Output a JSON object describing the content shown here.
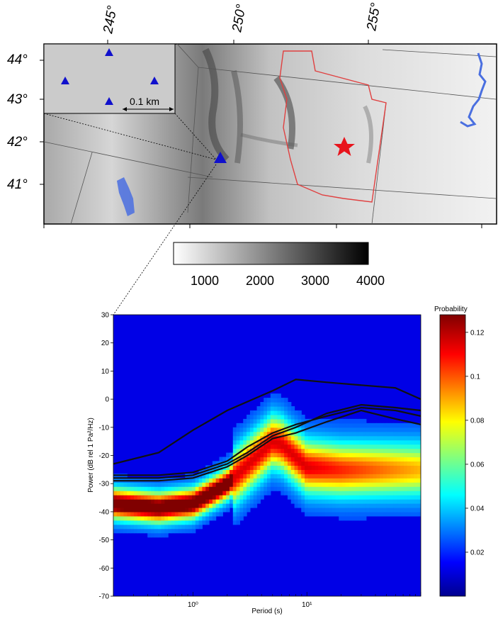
{
  "map": {
    "lon_labels": [
      "245°",
      "250°",
      "255°"
    ],
    "lat_labels": [
      "44°",
      "43°",
      "42°",
      "41°"
    ],
    "inset_scale_label": "0.1 km",
    "elevation_colorbar": {
      "ticks": [
        "1000",
        "2000",
        "3000",
        "4000"
      ],
      "range": [
        500,
        4000
      ]
    },
    "colors": {
      "station": "#1010cc",
      "star": "#e8141c",
      "outline": "#e04040",
      "water": "#4a6fe0"
    }
  },
  "chart_data": {
    "type": "heatmap",
    "title": "",
    "xlabel": "Period (s)",
    "ylabel": "Power (dB rel 1 Pa²/Hz)",
    "xscale": "log",
    "xlim": [
      0.2,
      100
    ],
    "ylim": [
      -70,
      30
    ],
    "x_tick_labels": [
      "10⁰",
      "10¹"
    ],
    "x_tick_values": [
      1,
      10
    ],
    "y_ticks": [
      30,
      20,
      10,
      0,
      -10,
      -20,
      -30,
      -40,
      -50,
      -60,
      -70
    ],
    "colorbar": {
      "label": "Probability",
      "ticks": [
        0.02,
        0.04,
        0.06,
        0.08,
        0.1,
        0.12
      ],
      "range": [
        0,
        0.128
      ]
    },
    "ridge": [
      {
        "period": 0.2,
        "power": -37
      },
      {
        "period": 0.5,
        "power": -38.5
      },
      {
        "period": 1,
        "power": -37
      },
      {
        "period": 2,
        "power": -30
      },
      {
        "period": 5,
        "power": -15
      },
      {
        "period": 6,
        "power": -16
      },
      {
        "period": 10,
        "power": -24
      },
      {
        "period": 20,
        "power": -25
      },
      {
        "period": 100,
        "power": -25
      }
    ],
    "series": [
      {
        "values": [
          [
            0.2,
            -23
          ],
          [
            0.5,
            -19
          ],
          [
            1,
            -11
          ],
          [
            2,
            -4
          ],
          [
            5,
            3
          ],
          [
            8,
            7
          ],
          [
            15,
            6
          ],
          [
            30,
            5
          ],
          [
            60,
            4
          ],
          [
            100,
            0
          ]
        ]
      },
      {
        "values": [
          [
            0.2,
            -27
          ],
          [
            0.5,
            -27
          ],
          [
            1,
            -26
          ],
          [
            2,
            -22
          ],
          [
            3,
            -17
          ],
          [
            5,
            -12
          ],
          [
            8,
            -9
          ],
          [
            15,
            -6
          ],
          [
            30,
            -3
          ],
          [
            60,
            -4
          ],
          [
            100,
            -6
          ]
        ]
      },
      {
        "values": [
          [
            0.2,
            -28
          ],
          [
            0.5,
            -28
          ],
          [
            1,
            -27
          ],
          [
            2,
            -23
          ],
          [
            3,
            -19
          ],
          [
            5,
            -13
          ],
          [
            8,
            -10
          ],
          [
            15,
            -5
          ],
          [
            30,
            -2
          ],
          [
            60,
            -3
          ],
          [
            100,
            -4
          ]
        ]
      },
      {
        "values": [
          [
            0.2,
            -29
          ],
          [
            0.5,
            -29
          ],
          [
            1,
            -28
          ],
          [
            2,
            -24
          ],
          [
            3,
            -20
          ],
          [
            5,
            -14
          ],
          [
            8,
            -12
          ],
          [
            15,
            -8
          ],
          [
            30,
            -4
          ],
          [
            60,
            -7
          ],
          [
            100,
            -9
          ]
        ]
      }
    ]
  }
}
